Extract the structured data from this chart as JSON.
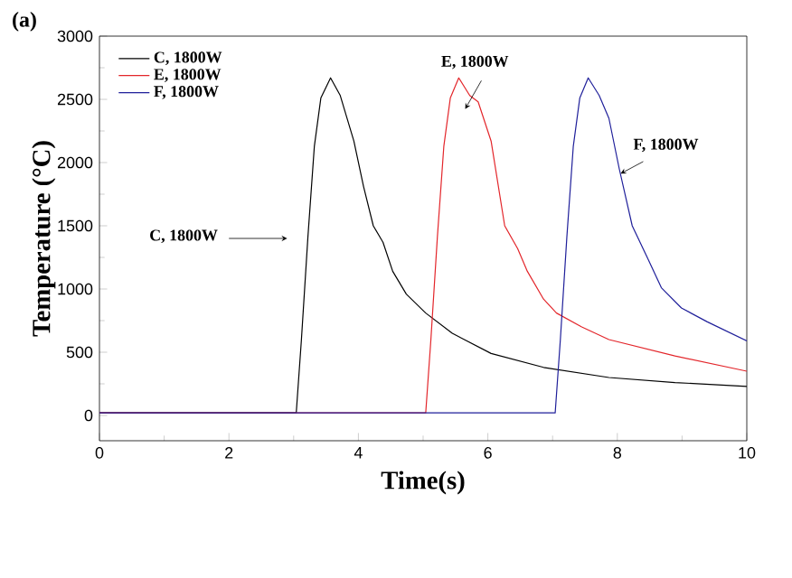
{
  "chart_data": {
    "type": "line",
    "title": "(a)",
    "xlabel": "Time(s)",
    "ylabel": "Temperature (°C)",
    "xlim": [
      0,
      10
    ],
    "ylim": [
      -200,
      3000
    ],
    "xticks": [
      0,
      2,
      4,
      6,
      8,
      10
    ],
    "yticks": [
      0,
      500,
      1000,
      1500,
      2000,
      2500,
      3000
    ],
    "legend": "top left",
    "line_style": "solid",
    "marker": "none",
    "series": [
      {
        "name": "C, 1800W",
        "color": "#000000",
        "x": [
          0,
          3.04,
          3.12,
          3.22,
          3.32,
          3.42,
          3.57,
          3.72,
          3.93,
          4.08,
          4.23,
          4.38,
          4.53,
          4.74,
          5.04,
          5.45,
          6.05,
          6.86,
          7.87,
          8.89,
          10
        ],
        "values": [
          20,
          20,
          600,
          1410,
          2130,
          2510,
          2670,
          2530,
          2170,
          1810,
          1500,
          1370,
          1140,
          960,
          810,
          650,
          490,
          380,
          300,
          260,
          230
        ]
      },
      {
        "name": "E, 1800W",
        "color": "#e3262b",
        "x": [
          0,
          5.04,
          5.12,
          5.22,
          5.32,
          5.42,
          5.55,
          5.72,
          5.85,
          6.05,
          6.26,
          6.46,
          6.61,
          6.86,
          7.06,
          7.45,
          7.87,
          8.89,
          10
        ],
        "values": [
          20,
          20,
          600,
          1410,
          2130,
          2510,
          2670,
          2530,
          2480,
          2170,
          1500,
          1320,
          1140,
          920,
          810,
          700,
          600,
          470,
          350
        ]
      },
      {
        "name": "F, 1800W",
        "color": "#1f1f9a",
        "x": [
          0,
          7.04,
          7.12,
          7.22,
          7.32,
          7.42,
          7.55,
          7.72,
          7.87,
          8.03,
          8.23,
          8.48,
          8.68,
          8.99,
          9.39,
          10
        ],
        "values": [
          20,
          20,
          600,
          1410,
          2130,
          2510,
          2670,
          2530,
          2350,
          1950,
          1500,
          1230,
          1010,
          850,
          740,
          590
        ]
      }
    ],
    "annotations": [
      "C, 1800W",
      "E, 1800W",
      "F, 1800W"
    ]
  }
}
